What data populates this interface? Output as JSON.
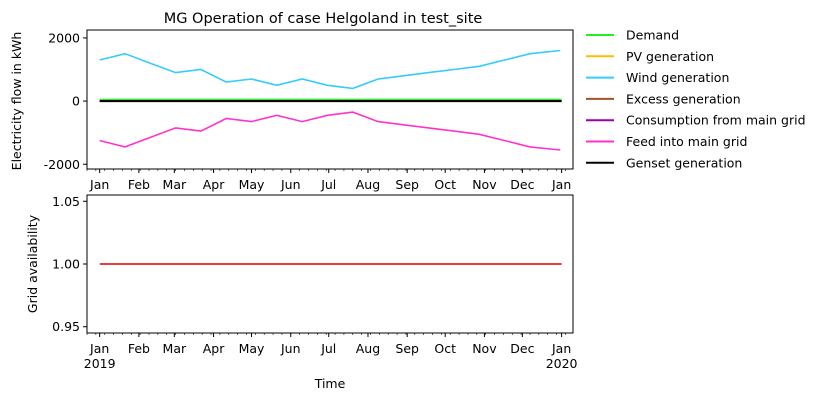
{
  "chart_data": [
    {
      "type": "line",
      "title": "MG Operation of case Helgoland in test_site",
      "xlabel": "",
      "ylabel": "Electricity flow in kWh",
      "x_range": [
        "2018-12-22",
        "2020-01-10"
      ],
      "ylim": [
        -2150,
        2250
      ],
      "y_ticks": [
        -2000,
        0,
        2000
      ],
      "x_ticks": [
        "Jan",
        "Feb",
        "Mar",
        "Apr",
        "May",
        "Jun",
        "Jul",
        "Aug",
        "Sep",
        "Oct",
        "Nov",
        "Dec",
        "Jan"
      ],
      "x_tick_dates": [
        "2019-01-01",
        "2019-02-01",
        "2019-03-01",
        "2019-04-01",
        "2019-05-01",
        "2019-06-01",
        "2019-07-01",
        "2019-08-01",
        "2019-09-01",
        "2019-10-01",
        "2019-11-01",
        "2019-12-01",
        "2020-01-01"
      ],
      "grid": false,
      "legend_position": "outside-right",
      "series": [
        {
          "name": "Demand",
          "color": "#22ee22",
          "approx": "small positive, about 50",
          "values": [
            [
              0,
              50
            ],
            [
              365,
              50
            ]
          ]
        },
        {
          "name": "PV generation",
          "color": "#ffbb00",
          "values": [
            [
              0,
              0
            ],
            [
              365,
              0
            ]
          ]
        },
        {
          "name": "Wind generation",
          "color": "#33ccff",
          "approx": "fluctuating between about 0 and 2000",
          "values": [
            [
              0,
              1300
            ],
            [
              20,
              1500
            ],
            [
              40,
              1200
            ],
            [
              60,
              900
            ],
            [
              80,
              1000
            ],
            [
              100,
              600
            ],
            [
              120,
              700
            ],
            [
              140,
              500
            ],
            [
              160,
              700
            ],
            [
              180,
              500
            ],
            [
              200,
              400
            ],
            [
              220,
              700
            ],
            [
              240,
              800
            ],
            [
              260,
              900
            ],
            [
              280,
              1000
            ],
            [
              300,
              1100
            ],
            [
              320,
              1300
            ],
            [
              340,
              1500
            ],
            [
              364,
              1600
            ]
          ]
        },
        {
          "name": "Excess generation",
          "color": "#a0522d",
          "values": [
            [
              0,
              0
            ],
            [
              365,
              0
            ]
          ]
        },
        {
          "name": "Consumption from main grid",
          "color": "#9900aa",
          "values": [
            [
              0,
              0
            ],
            [
              365,
              0
            ]
          ]
        },
        {
          "name": "Feed into main grid",
          "color": "#ff33cc",
          "approx": "mirror of wind generation, between about 0 and -2000",
          "values": [
            [
              0,
              -1250
            ],
            [
              20,
              -1450
            ],
            [
              40,
              -1150
            ],
            [
              60,
              -850
            ],
            [
              80,
              -950
            ],
            [
              100,
              -550
            ],
            [
              120,
              -650
            ],
            [
              140,
              -450
            ],
            [
              160,
              -650
            ],
            [
              180,
              -450
            ],
            [
              200,
              -350
            ],
            [
              220,
              -650
            ],
            [
              240,
              -750
            ],
            [
              260,
              -850
            ],
            [
              280,
              -950
            ],
            [
              300,
              -1050
            ],
            [
              320,
              -1250
            ],
            [
              340,
              -1450
            ],
            [
              364,
              -1550
            ]
          ]
        },
        {
          "name": "Genset generation",
          "color": "#000000",
          "values": [
            [
              0,
              0
            ],
            [
              365,
              0
            ]
          ]
        }
      ]
    },
    {
      "type": "line",
      "title": "",
      "xlabel": "Time",
      "ylabel": "Grid availability",
      "x_range": [
        "2018-12-22",
        "2020-01-10"
      ],
      "ylim": [
        0.945,
        1.055
      ],
      "y_ticks": [
        "0.95",
        "1.00",
        "1.05"
      ],
      "x_ticks": [
        "Jan",
        "Feb",
        "Mar",
        "Apr",
        "May",
        "Jun",
        "Jul",
        "Aug",
        "Sep",
        "Oct",
        "Nov",
        "Dec",
        "Jan"
      ],
      "x_year_labels": [
        "2019",
        "2020"
      ],
      "grid": false,
      "series": [
        {
          "color": "#dd0000",
          "values": [
            [
              0,
              1.0
            ],
            [
              365,
              1.0
            ]
          ]
        }
      ]
    }
  ]
}
